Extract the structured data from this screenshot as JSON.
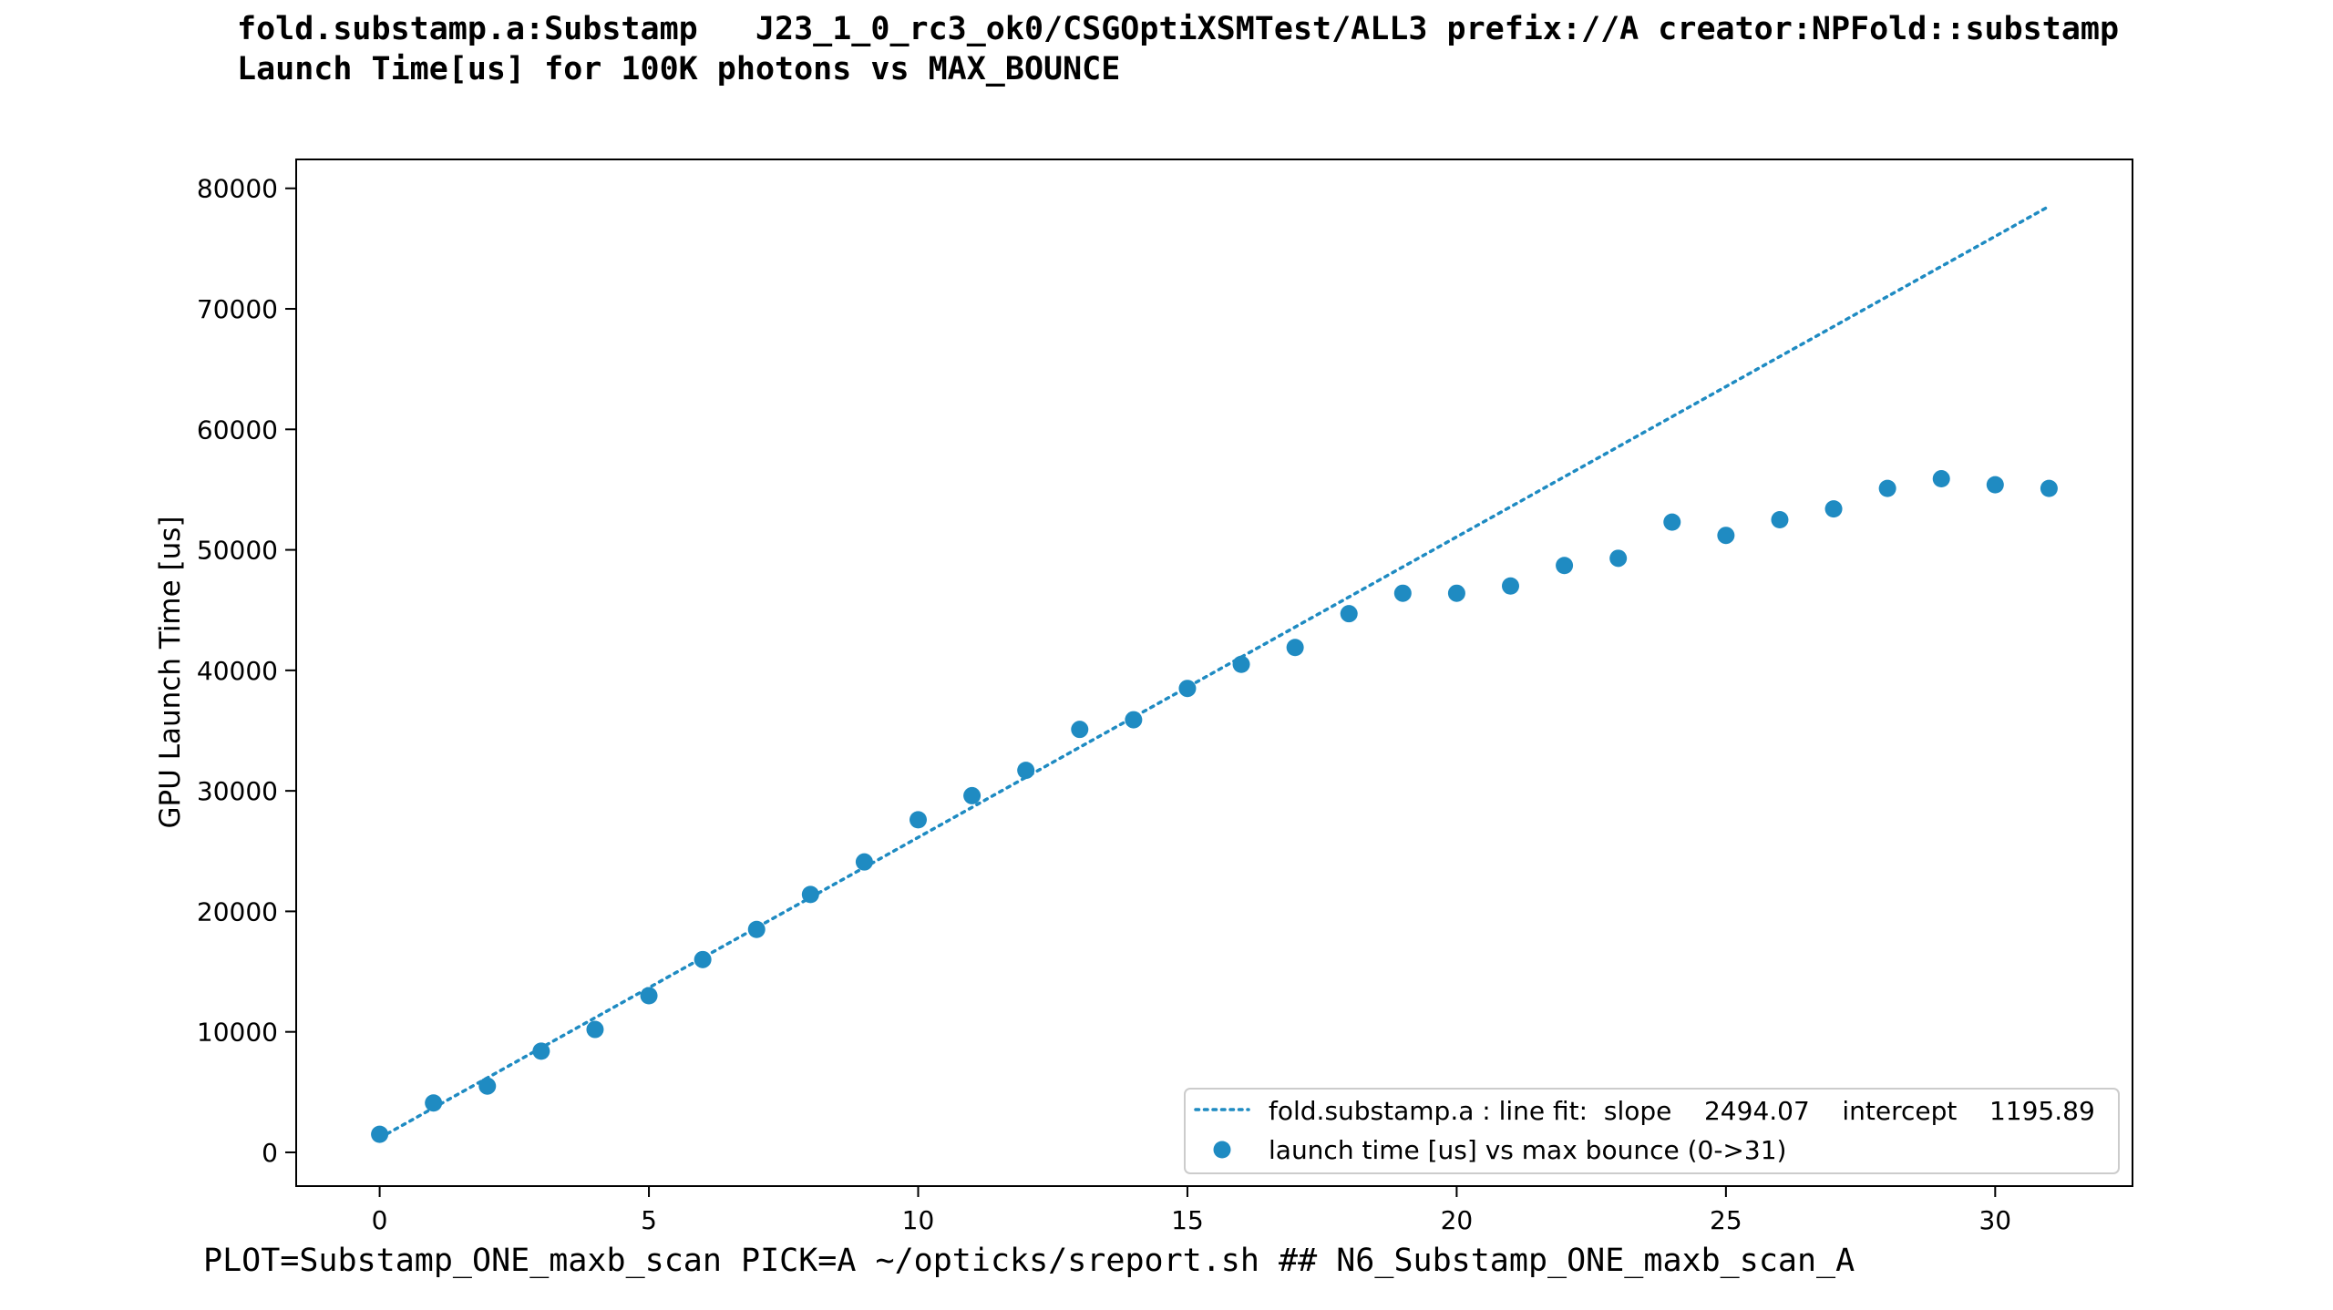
{
  "header": {
    "line1": "fold.substamp.a:Substamp   J23_1_0_rc3_ok0/CSGOptiXSMTest/ALL3 prefix://A creator:NPFold::substamp",
    "line2": "Launch Time[us] for 100K photons vs MAX_BOUNCE"
  },
  "footer": {
    "text": "PLOT=Substamp_ONE_maxb_scan PICK=A ~/opticks/sreport.sh ## N6_Substamp_ONE_maxb_scan_A"
  },
  "chart_data": {
    "type": "scatter",
    "title": "",
    "xlabel": "",
    "ylabel": "GPU Launch Time [us]",
    "xlim": [
      -1.55,
      32.55
    ],
    "ylim": [
      -2800,
      82400
    ],
    "x_ticks": [
      0,
      5,
      10,
      15,
      20,
      25,
      30
    ],
    "y_ticks": [
      0,
      10000,
      20000,
      30000,
      40000,
      50000,
      60000,
      70000,
      80000
    ],
    "grid": false,
    "legend_position": "lower-right",
    "colors": {
      "series": "#1f8bc2",
      "axes": "#000000"
    },
    "series": [
      {
        "name": "fold.substamp.a : line fit:  slope    2494.07    intercept    1195.89",
        "kind": "line-fit",
        "style": "dotted",
        "slope": 2494.07,
        "intercept": 1195.89,
        "x_range": [
          0,
          31
        ]
      },
      {
        "name": "launch time [us] vs max bounce (0->31)",
        "kind": "points",
        "x": [
          0,
          1,
          2,
          3,
          4,
          5,
          6,
          7,
          8,
          9,
          10,
          11,
          12,
          13,
          14,
          15,
          16,
          17,
          18,
          19,
          20,
          21,
          22,
          23,
          24,
          25,
          26,
          27,
          28,
          29,
          30,
          31
        ],
        "y": [
          1500,
          4100,
          5500,
          8400,
          10200,
          13000,
          16000,
          18500,
          21400,
          24100,
          27600,
          29600,
          31700,
          35100,
          35900,
          38500,
          40500,
          41900,
          44700,
          46400,
          46400,
          47000,
          48700,
          49300,
          52300,
          51200,
          52500,
          53400,
          55100,
          55900,
          55400,
          55100
        ]
      }
    ]
  }
}
